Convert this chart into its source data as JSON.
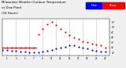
{
  "title": "Milwaukee Weather Outdoor Temperature",
  "title2": "vs Dew Point",
  "title3": "(24 Hours)",
  "title_fontsize": 2.8,
  "bg_color": "#f0f0f0",
  "plot_bg_color": "#ffffff",
  "grid_color": "#aaaaaa",
  "temp_color": "#ff0000",
  "dew_color": "#0000ff",
  "legend_dew_label": "Dew",
  "legend_temp_label": "Temp",
  "ylim": [
    24,
    60
  ],
  "yticks": [
    27,
    32,
    37,
    42,
    47,
    52,
    57
  ],
  "xlim": [
    0,
    24
  ],
  "xticks": [
    1,
    3,
    5,
    7,
    9,
    11,
    13,
    15,
    17,
    19,
    21,
    23
  ],
  "xticklabels": [
    "1",
    "3",
    "5",
    "7",
    "9",
    "11",
    "13",
    "15",
    "17",
    "19",
    "21",
    "23"
  ],
  "hours": [
    0,
    1,
    2,
    3,
    4,
    5,
    6,
    7,
    8,
    9,
    10,
    11,
    12,
    13,
    14,
    15,
    16,
    17,
    18,
    19,
    20,
    21,
    22,
    23
  ],
  "temp": [
    32,
    32,
    32,
    32,
    32,
    32,
    32,
    32,
    45,
    50,
    55,
    57,
    54,
    50,
    47,
    44,
    42,
    40,
    38,
    37,
    36,
    35,
    34,
    32
  ],
  "dew": [
    30,
    30,
    29,
    29,
    28,
    28,
    27,
    27,
    27,
    28,
    29,
    30,
    31,
    32,
    33,
    34,
    34,
    33,
    32,
    31,
    30,
    29,
    28,
    28
  ],
  "marker_size": 2.5,
  "dashed_vlines": [
    3,
    6,
    9,
    12,
    15,
    18,
    21
  ],
  "right_bar_blue": "#0000ff",
  "right_bar_red": "#ff0000",
  "flat_line_color": "#ff0000",
  "flat_line_y": 32,
  "flat_line_x0": 0,
  "flat_line_x1": 7.5
}
